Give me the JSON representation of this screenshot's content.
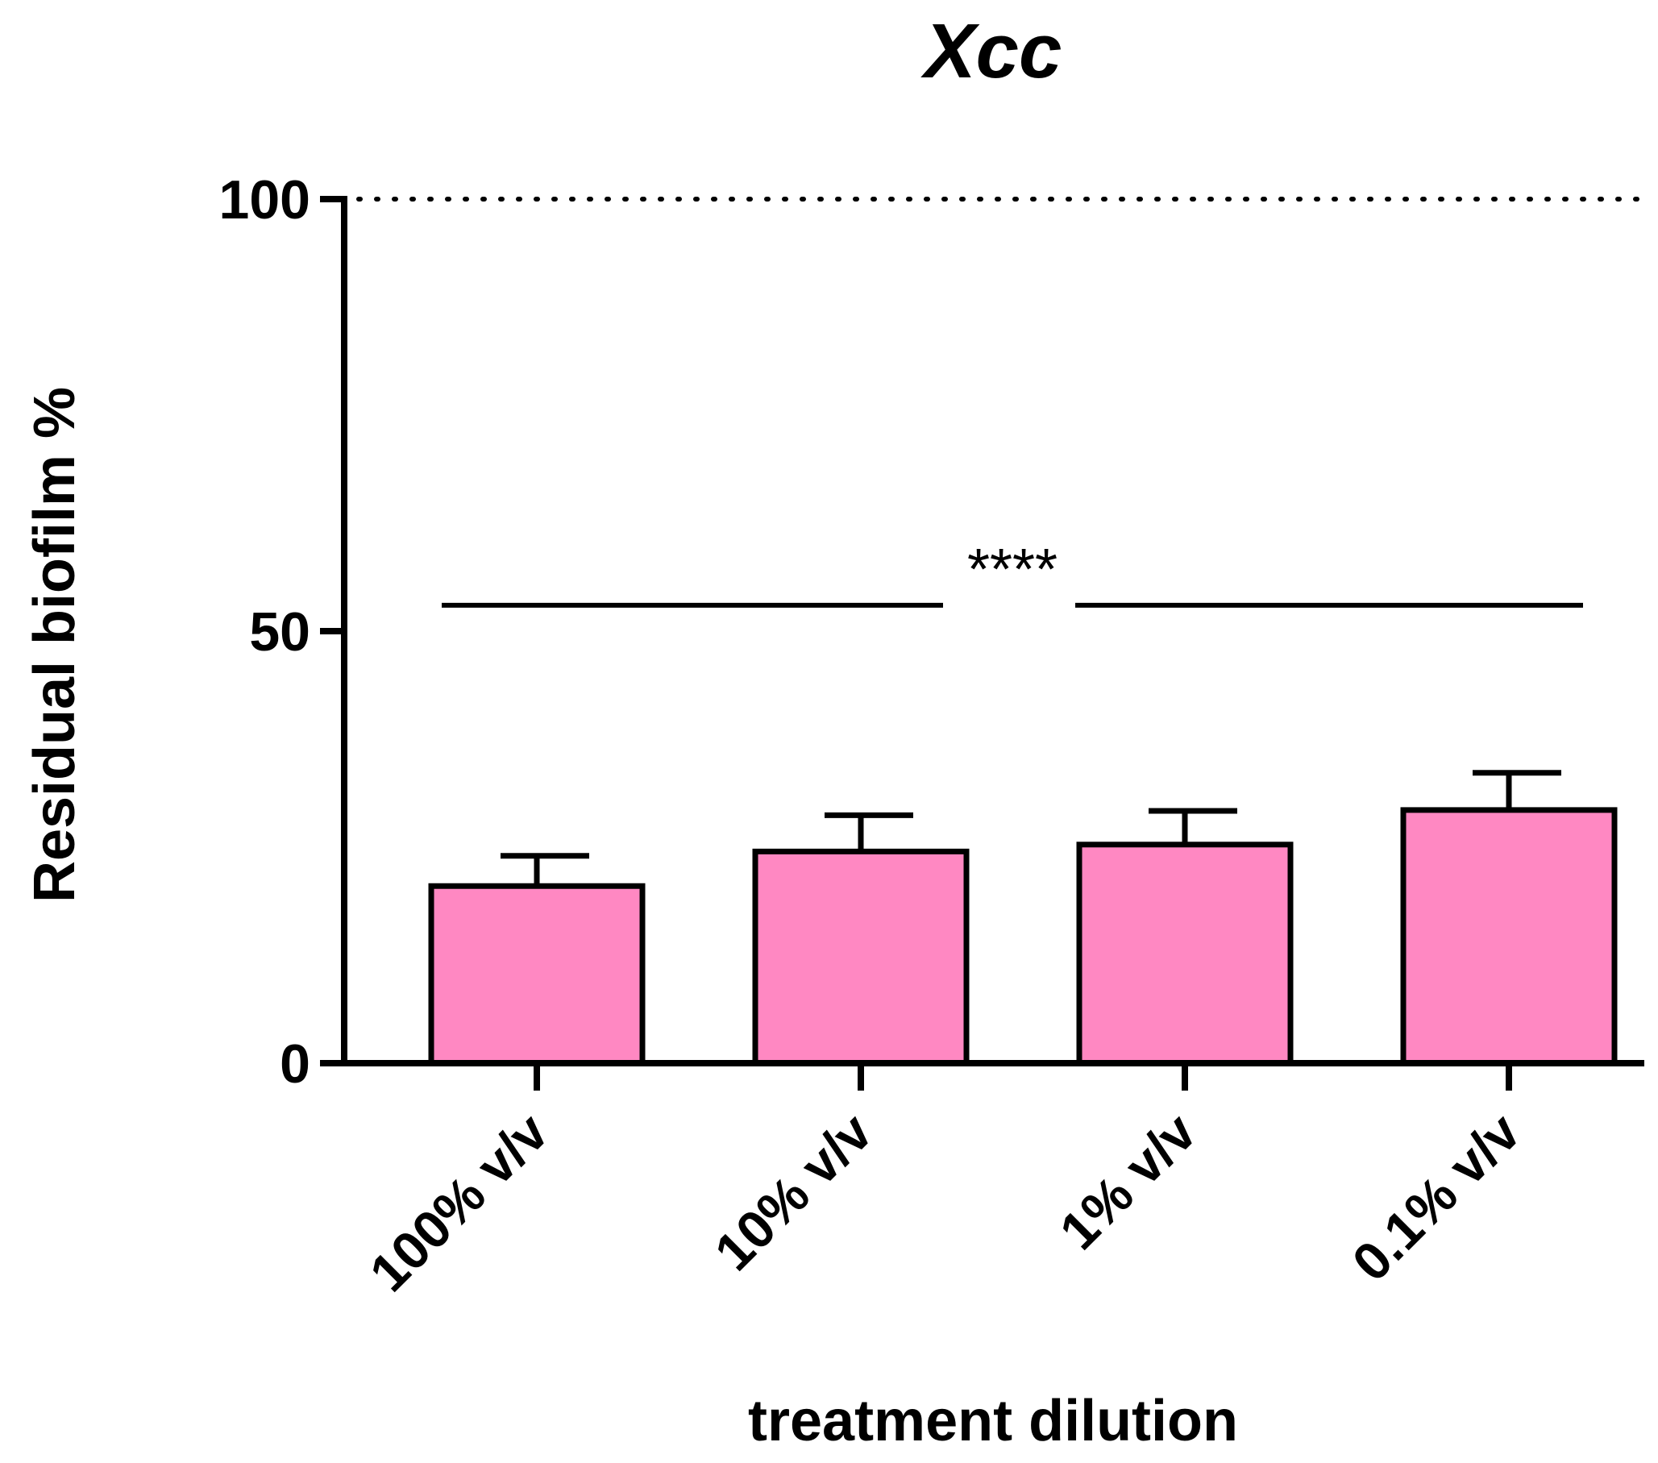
{
  "chart_data": {
    "type": "bar",
    "title": "Xcc",
    "xlabel": "treatment dilution",
    "ylabel": "Residual biofilm %",
    "categories": [
      "100% v/v",
      "10% v/v",
      "1% v/v",
      "0.1% v/v"
    ],
    "values": [
      20.5,
      24.5,
      25.3,
      29.3
    ],
    "errors": [
      3.5,
      4.2,
      3.9,
      4.3
    ],
    "ylim": [
      0,
      100
    ],
    "yticks": [
      0,
      50,
      100
    ],
    "bar_color": "#FF88C2",
    "edge_color": "#000000",
    "reference_line": {
      "value": 100,
      "style": "dotted"
    },
    "significance": {
      "label": "****",
      "y": 53,
      "from_category": 0,
      "to_category": 3
    },
    "grid": false,
    "legend": "none"
  }
}
